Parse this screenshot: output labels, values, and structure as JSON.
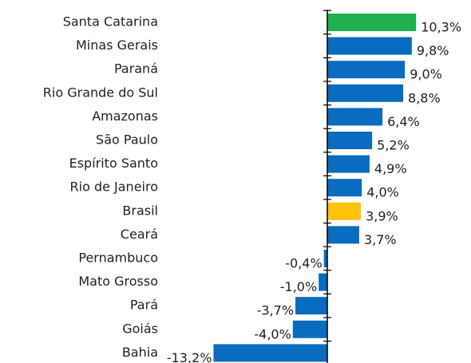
{
  "chart_data": {
    "type": "bar",
    "orientation": "horizontal",
    "categories": [
      "Santa Catarina",
      "Minas Gerais",
      "Paraná",
      "Rio Grande do Sul",
      "Amazonas",
      "São Paulo",
      "Espírito Santo",
      "Rio de Janeiro",
      "Brasil",
      "Ceará",
      "Pernambuco",
      "Mato Grosso",
      "Pará",
      "Goiás",
      "Bahia"
    ],
    "values": [
      10.3,
      9.8,
      9.0,
      8.8,
      6.4,
      5.2,
      4.9,
      4.0,
      3.9,
      3.7,
      -0.4,
      -1.0,
      -3.7,
      -4.0,
      -13.2
    ],
    "value_labels": [
      "10,3%",
      "9,8%",
      "9,0%",
      "8,8%",
      "6,4%",
      "5,2%",
      "4,9%",
      "4,0%",
      "3,9%",
      "3,7%",
      "-0,4%",
      "-1,0%",
      "-3,7%",
      "-4,0%",
      "-13,2%"
    ],
    "colors": [
      "#1fb04f",
      "#0a6cbf",
      "#0a6cbf",
      "#0a6cbf",
      "#0a6cbf",
      "#0a6cbf",
      "#0a6cbf",
      "#0a6cbf",
      "#ffc20e",
      "#0a6cbf",
      "#0a6cbf",
      "#0a6cbf",
      "#0a6cbf",
      "#0a6cbf",
      "#0a6cbf"
    ],
    "xlim": [
      -14,
      11
    ]
  }
}
